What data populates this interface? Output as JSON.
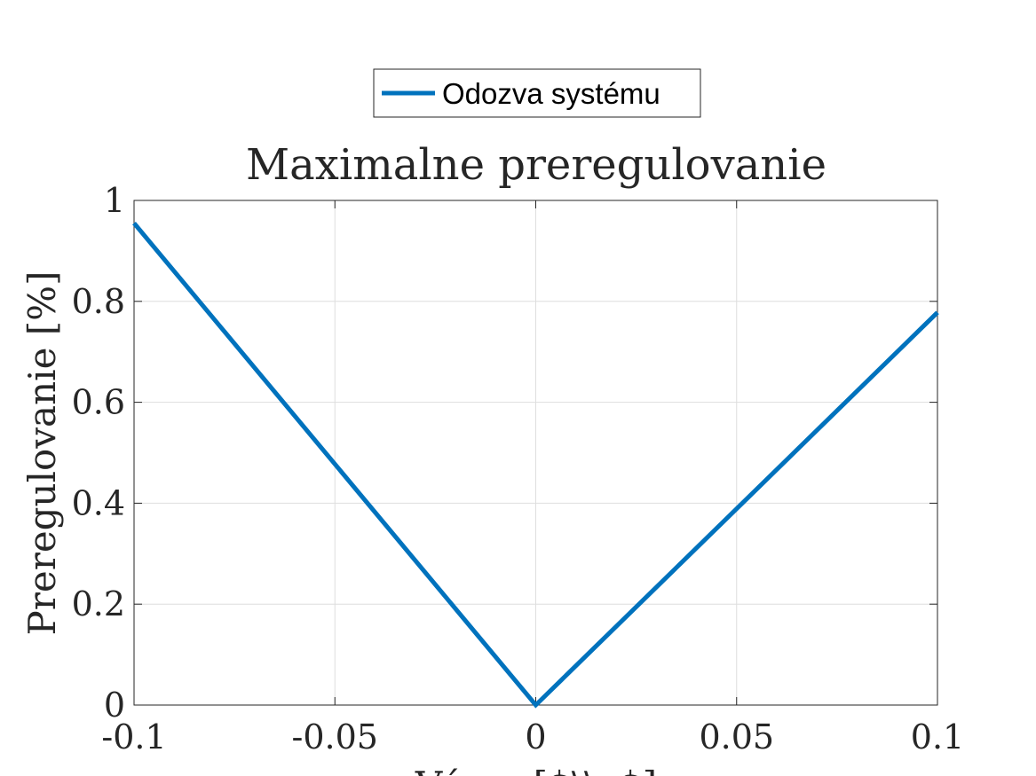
{
  "chart_data": {
    "type": "line",
    "title": "Maximalne preregulovanie",
    "xlabel": "Výrez [$\\\\a$]",
    "ylabel": "Preregulovanie [%]",
    "xlim": [
      -0.1,
      0.1
    ],
    "ylim": [
      0,
      1
    ],
    "xticks": [
      -0.1,
      -0.05,
      0,
      0.05,
      0.1
    ],
    "xtick_labels": [
      "-0.1",
      "-0.05",
      "0",
      "0.05",
      "0.1"
    ],
    "yticks": [
      0,
      0.2,
      0.4,
      0.6,
      0.8,
      1
    ],
    "ytick_labels": [
      "0",
      "0.2",
      "0.4",
      "0.6",
      "0.8",
      "1"
    ],
    "grid": true,
    "legend_position": "top-center-outside",
    "series": [
      {
        "name": "Odozva systému",
        "color": "#0072BD",
        "x": [
          -0.1,
          0,
          0.1
        ],
        "y": [
          0.955,
          0,
          0.778
        ]
      }
    ]
  }
}
